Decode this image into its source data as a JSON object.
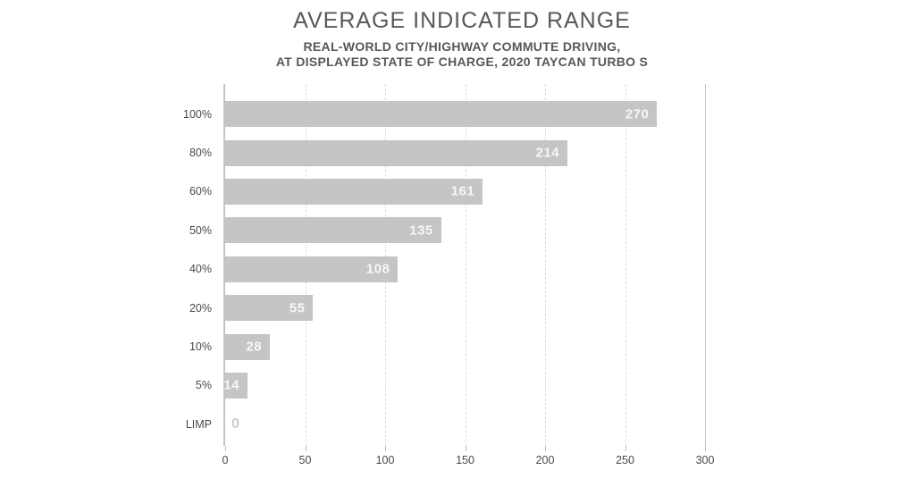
{
  "chart_data": {
    "type": "bar",
    "orientation": "horizontal",
    "title": "AVERAGE INDICATED RANGE",
    "subtitle_line1": "REAL-WORLD CITY/HIGHWAY COMMUTE DRIVING,",
    "subtitle_line2": "AT DISPLAYED STATE OF CHARGE, 2020 TAYCAN TURBO S",
    "categories": [
      "100%",
      "80%",
      "60%",
      "50%",
      "40%",
      "20%",
      "10%",
      "5%",
      "LIMP"
    ],
    "values": [
      270,
      214,
      161,
      135,
      108,
      55,
      28,
      14,
      0
    ],
    "xlabel": "",
    "ylabel": "",
    "xlim": [
      0,
      300
    ],
    "x_ticks": [
      0,
      50,
      100,
      150,
      200,
      250,
      300
    ],
    "grid": "vertical-dashed, solid end line at 300",
    "legend": "none",
    "value_label_position": "inside-end (zero value shown outside in gray)",
    "colors": {
      "bar": "#c4c5c6",
      "bar_value_label": "#f7f7f7",
      "zero_value_label": "#cbccce",
      "title_text": "#57585a",
      "axis_text": "#48494b",
      "gridline_dashed": "#dcdcdd",
      "gridline_solid": "#c5c6c7",
      "axis_line": "#c2c3c4",
      "background": "#ffffff"
    }
  }
}
